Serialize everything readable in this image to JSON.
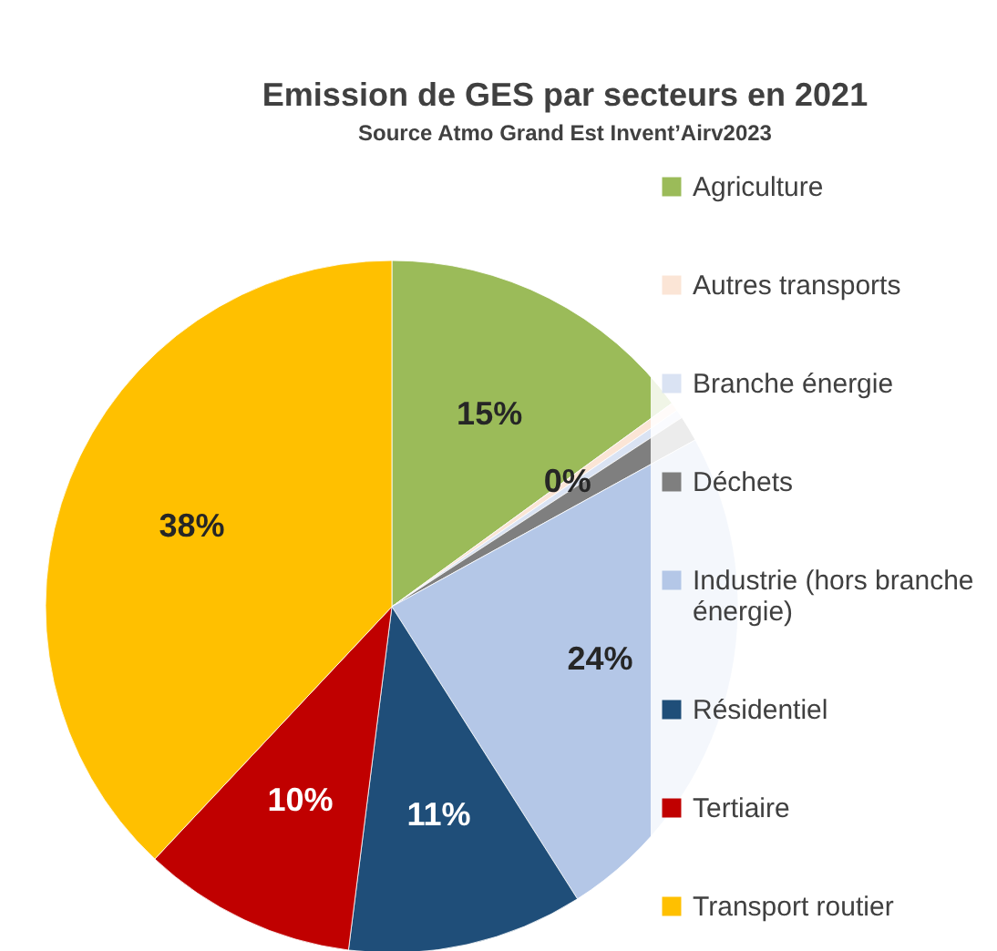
{
  "chart_data": {
    "type": "pie",
    "title": "Emission de GES par secteurs en 2021",
    "subtitle": "Source Atmo Grand Est Invent’Airv2023",
    "categories": [
      "Agriculture",
      "Autres transports",
      "Branche énergie",
      "Déchets",
      "Industrie (hors branche énergie)",
      "Résidentiel",
      "Tertiaire",
      "Transport routier"
    ],
    "values": [
      15,
      0.4,
      0.4,
      1.2,
      24,
      11,
      10,
      38
    ],
    "colors": [
      "#9bbb59",
      "#fbe5d6",
      "#dae3f3",
      "#7f7f7f",
      "#b4c7e7",
      "#1f4e79",
      "#c00000",
      "#ffc000"
    ],
    "value_labels": [
      "15%",
      "0%",
      null,
      null,
      "24%",
      "11%",
      "10%",
      "38%"
    ],
    "legend": "right"
  }
}
